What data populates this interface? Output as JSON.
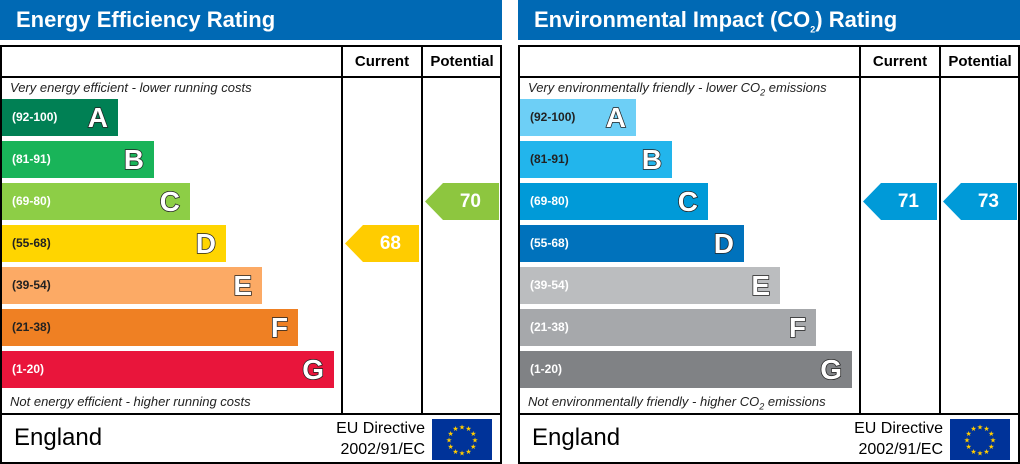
{
  "charts": [
    {
      "title": "Energy Efficiency Rating",
      "current_label": "Current",
      "potential_label": "Potential",
      "top_note": "Very energy efficient - lower running costs",
      "bottom_note": "Not energy efficient - higher running costs",
      "bands": [
        {
          "letter": "A",
          "range": "(92-100)",
          "color": "#008054"
        },
        {
          "letter": "B",
          "range": "(81-91)",
          "color": "#19b459"
        },
        {
          "letter": "C",
          "range": "(69-80)",
          "color": "#8dce46"
        },
        {
          "letter": "D",
          "range": "(55-68)",
          "color": "#ffd500"
        },
        {
          "letter": "E",
          "range": "(39-54)",
          "color": "#fcaa65"
        },
        {
          "letter": "F",
          "range": "(21-38)",
          "color": "#ef8023"
        },
        {
          "letter": "G",
          "range": "(1-20)",
          "color": "#e9153b"
        }
      ],
      "current": {
        "value": "68",
        "band": "D",
        "color": "#ffcc00"
      },
      "potential": {
        "value": "70",
        "band": "C",
        "color": "#8dc63f"
      },
      "country": "England",
      "directive_line1": "EU Directive",
      "directive_line2": "2002/91/EC"
    },
    {
      "title": "Environmental Impact (CO",
      "title_sub": "2",
      "title_end": ") Rating",
      "current_label": "Current",
      "potential_label": "Potential",
      "top_note": "Very environmentally friendly - lower CO",
      "top_note_sub": "2",
      "top_note_end": " emissions",
      "bottom_note": "Not environmentally friendly - higher CO",
      "bottom_note_sub": "2",
      "bottom_note_end": " emissions",
      "bands": [
        {
          "letter": "A",
          "range": "(92-100)",
          "color": "#6dcff6"
        },
        {
          "letter": "B",
          "range": "(81-91)",
          "color": "#22b5ec"
        },
        {
          "letter": "C",
          "range": "(69-80)",
          "color": "#009ad8"
        },
        {
          "letter": "D",
          "range": "(55-68)",
          "color": "#0072bc"
        },
        {
          "letter": "E",
          "range": "(39-54)",
          "color": "#bbbdbf"
        },
        {
          "letter": "F",
          "range": "(21-38)",
          "color": "#a6a8ab"
        },
        {
          "letter": "G",
          "range": "(1-20)",
          "color": "#808285"
        }
      ],
      "current": {
        "value": "71",
        "band": "C",
        "color": "#009ad8"
      },
      "potential": {
        "value": "73",
        "band": "C",
        "color": "#009ad8"
      },
      "country": "England",
      "directive_line1": "EU Directive",
      "directive_line2": "2002/91/EC"
    }
  ],
  "chart_data": [
    {
      "type": "table",
      "title": "Energy Efficiency Rating",
      "categories": [
        "A",
        "B",
        "C",
        "D",
        "E",
        "F",
        "G"
      ],
      "ranges": [
        "92-100",
        "81-91",
        "69-80",
        "55-68",
        "39-54",
        "21-38",
        "1-20"
      ],
      "current": 68,
      "potential": 70
    },
    {
      "type": "table",
      "title": "Environmental Impact (CO2) Rating",
      "categories": [
        "A",
        "B",
        "C",
        "D",
        "E",
        "F",
        "G"
      ],
      "ranges": [
        "92-100",
        "81-91",
        "69-80",
        "55-68",
        "39-54",
        "21-38",
        "1-20"
      ],
      "current": 71,
      "potential": 73
    }
  ]
}
